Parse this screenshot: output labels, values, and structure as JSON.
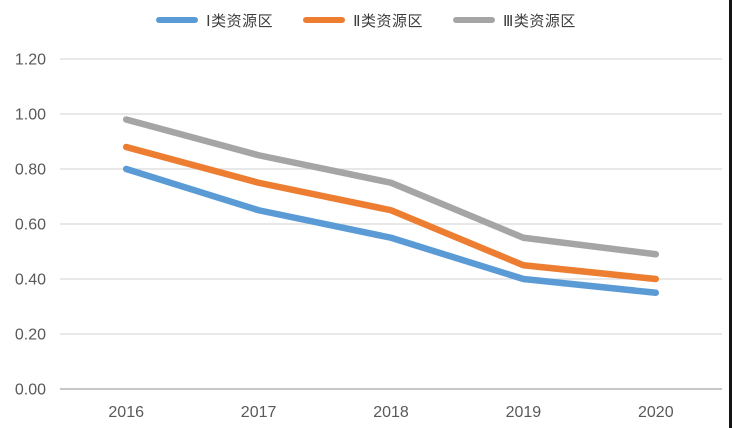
{
  "page": {
    "background": "#ffffff",
    "right_border_color": "#141414"
  },
  "legend": {
    "text_color": "#3d3d3d",
    "items": [
      {
        "label": "Ⅰ类资源区",
        "color": "#5B9BD5"
      },
      {
        "label": "Ⅱ类资源区",
        "color": "#ED7D31"
      },
      {
        "label": "Ⅲ类资源区",
        "color": "#A5A5A5"
      }
    ]
  },
  "chart_data": {
    "type": "line",
    "title": "",
    "xlabel": "",
    "ylabel": "",
    "categories": [
      "2016",
      "2017",
      "2018",
      "2019",
      "2020"
    ],
    "series": [
      {
        "name": "Ⅰ类资源区",
        "color": "#5B9BD5",
        "values": [
          0.8,
          0.65,
          0.55,
          0.4,
          0.35
        ]
      },
      {
        "name": "Ⅱ类资源区",
        "color": "#ED7D31",
        "values": [
          0.88,
          0.75,
          0.65,
          0.45,
          0.4
        ]
      },
      {
        "name": "Ⅲ类资源区",
        "color": "#A5A5A5",
        "values": [
          0.98,
          0.85,
          0.75,
          0.55,
          0.49
        ]
      }
    ],
    "ylim": [
      0.0,
      1.2
    ],
    "ytick_step": 0.2,
    "ytick_labels": [
      "0.00",
      "0.20",
      "0.40",
      "0.60",
      "0.80",
      "1.00",
      "1.20"
    ],
    "grid": true,
    "legend_position": "top",
    "gridline_color": "#D9D9D9",
    "axis_line_color": "#BFBFBF",
    "tick_label_color": "#595959"
  }
}
